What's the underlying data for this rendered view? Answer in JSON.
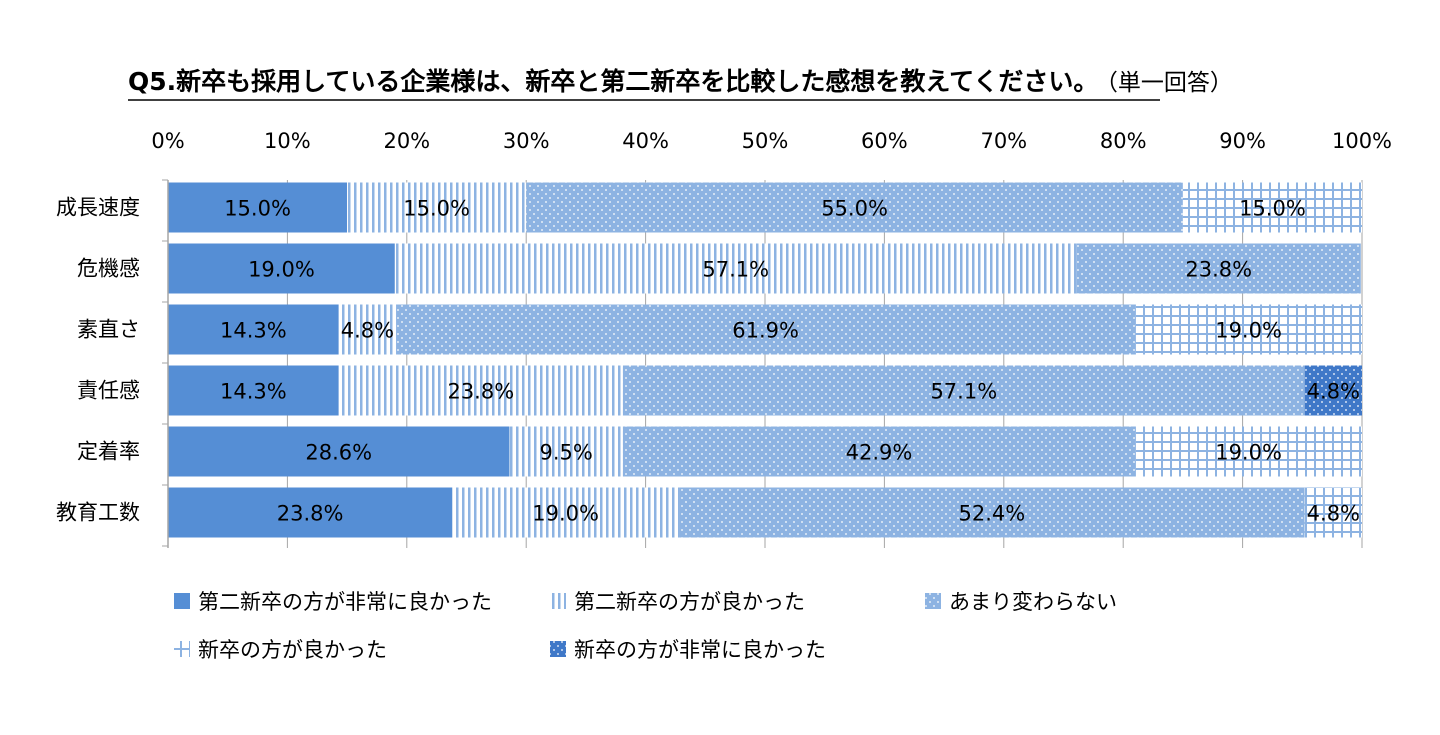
{
  "chart_data": {
    "type": "bar",
    "orientation": "horizontal",
    "stacked": "percent",
    "title": "Q5.新卒も採用している企業様は、新卒と第二新卒を比較した感想を教えてください。",
    "subtitle": "（単一回答）",
    "xlim": [
      0,
      100
    ],
    "x_ticks": [
      "0%",
      "10%",
      "20%",
      "30%",
      "40%",
      "50%",
      "60%",
      "70%",
      "80%",
      "90%",
      "100%"
    ],
    "grid": true,
    "legend_position": "bottom",
    "categories": [
      "成長速度",
      "危機感",
      "素直さ",
      "責任感",
      "定着率",
      "教育工数"
    ],
    "series": [
      {
        "name": "第二新卒の方が非常に良かった",
        "pattern": "solid",
        "color": "#558ed5",
        "values": [
          15.0,
          19.0,
          14.3,
          14.3,
          28.6,
          23.8
        ],
        "labels": [
          "15.0%",
          "19.0%",
          "14.3%",
          "14.3%",
          "28.6%",
          "23.8%"
        ]
      },
      {
        "name": "第二新卒の方が良かった",
        "pattern": "vertical-lines",
        "color": "#8db3e2",
        "values": [
          15.0,
          57.1,
          4.8,
          23.8,
          9.5,
          19.0
        ],
        "labels": [
          "15.0%",
          "57.1%",
          "4.8%",
          "23.8%",
          "9.5%",
          "19.0%"
        ]
      },
      {
        "name": "あまり変わらない",
        "pattern": "dots",
        "color": "#8db3e2",
        "values": [
          55.0,
          23.8,
          61.9,
          57.1,
          42.9,
          52.4
        ],
        "labels": [
          "55.0%",
          "23.8%",
          "61.9%",
          "57.1%",
          "42.9%",
          "52.4%"
        ]
      },
      {
        "name": "新卒の方が良かった",
        "pattern": "grid",
        "color": "#8db3e2",
        "values": [
          15.0,
          0,
          19.0,
          0,
          19.0,
          4.8
        ],
        "labels": [
          "15.0%",
          "",
          "19.0%",
          "",
          "19.0%",
          "4.8%"
        ]
      },
      {
        "name": "新卒の方が非常に良かった",
        "pattern": "dark-dots",
        "color": "#3f78c8",
        "values": [
          0,
          0,
          0,
          4.8,
          0,
          0
        ],
        "labels": [
          "",
          "",
          "",
          "4.8%",
          "",
          ""
        ]
      }
    ]
  },
  "colors": {
    "solid": "#558ed5",
    "light": "#8db3e2",
    "dark": "#3f78c8",
    "axis": "#a6a6a6"
  }
}
